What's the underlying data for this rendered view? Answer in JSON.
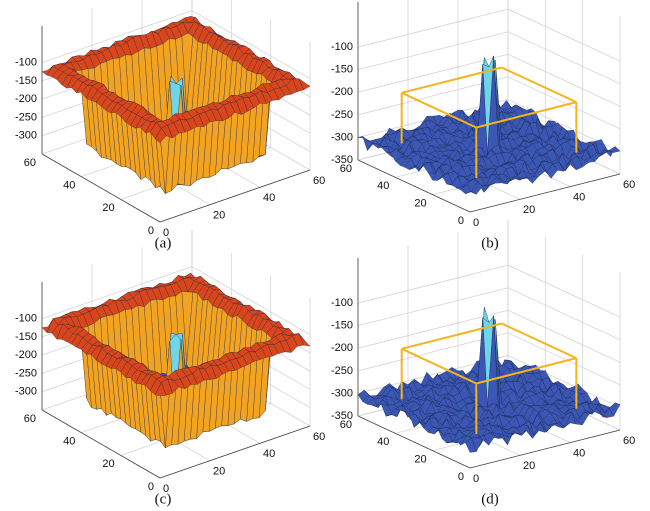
{
  "chart_data": [
    {
      "type": "surface",
      "caption": "(a)",
      "colormap": "hot",
      "xlim": [
        0,
        60
      ],
      "ylim": [
        0,
        60
      ],
      "zlim": [
        -350,
        0
      ],
      "xticks": [
        0,
        20,
        40,
        60
      ],
      "yticks": [
        0,
        20,
        40,
        60
      ],
      "zticks": [
        -100,
        -150,
        -200,
        -250,
        -300
      ],
      "grid": true
    },
    {
      "type": "surface",
      "caption": "(b)",
      "colormap": "blue",
      "box_color": "#f5b41e",
      "xlim": [
        0,
        60
      ],
      "ylim": [
        0,
        60
      ],
      "zlim": [
        -350,
        0
      ],
      "xticks": [
        0,
        20,
        40,
        60
      ],
      "yticks": [
        0,
        20,
        40,
        60
      ],
      "zticks": [
        -100,
        -150,
        -200,
        -250,
        -300,
        -350
      ],
      "grid": true
    },
    {
      "type": "surface",
      "caption": "(c)",
      "colormap": "hot",
      "xlim": [
        0,
        60
      ],
      "ylim": [
        0,
        60
      ],
      "zlim": [
        -350,
        0
      ],
      "xticks": [
        0,
        20,
        40,
        60
      ],
      "yticks": [
        0,
        20,
        40,
        60
      ],
      "zticks": [
        -100,
        -150,
        -200,
        -250,
        -300
      ],
      "grid": true
    },
    {
      "type": "surface",
      "caption": "(d)",
      "colormap": "blue",
      "box_color": "#f5b41e",
      "xlim": [
        0,
        60
      ],
      "ylim": [
        0,
        60
      ],
      "zlim": [
        -350,
        0
      ],
      "xticks": [
        0,
        20,
        40,
        60
      ],
      "yticks": [
        0,
        20,
        40,
        60
      ],
      "zticks": [
        -100,
        -150,
        -200,
        -250,
        -300,
        -350
      ],
      "grid": true
    }
  ]
}
